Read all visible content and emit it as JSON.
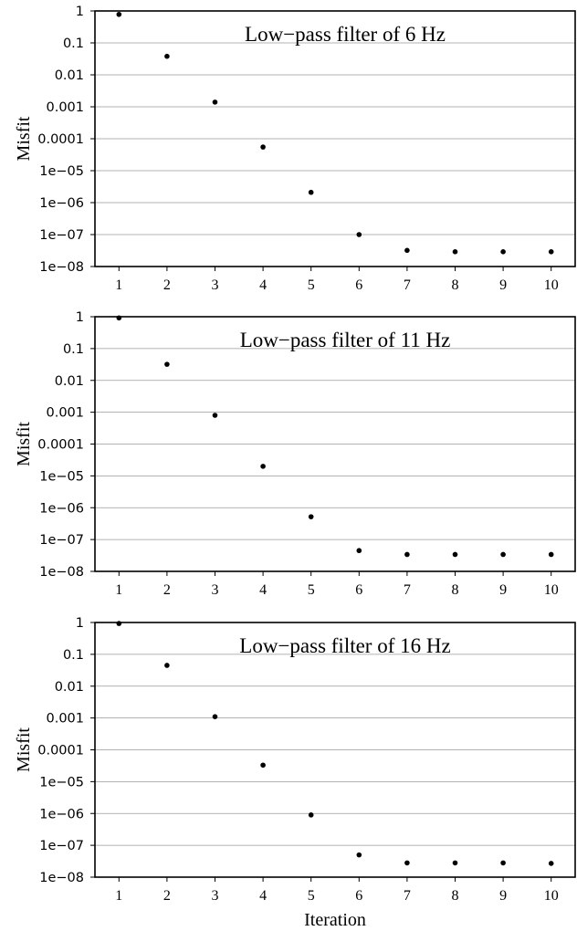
{
  "chart_data": [
    {
      "type": "scatter",
      "title": "Low−pass filter of 6 Hz",
      "ylabel": "Misfit",
      "xlabel": "",
      "y_scale": "log",
      "ylim": [
        1e-08,
        1
      ],
      "xlim": [
        0.5,
        10.5
      ],
      "x_ticks": [
        1,
        2,
        3,
        4,
        5,
        6,
        7,
        8,
        9,
        10
      ],
      "y_tick_labels": [
        "1",
        "0.1",
        "0.01",
        "0.001",
        "0.0001",
        "1e−05",
        "1e−06",
        "1e−07",
        "1e−08"
      ],
      "grid": "horizontal",
      "x": [
        1,
        2,
        3,
        4,
        5,
        6,
        7,
        8,
        9,
        10
      ],
      "y": [
        0.78,
        0.038,
        0.0014,
        5.5e-05,
        2.1e-06,
        1e-07,
        3.2e-08,
        2.9e-08,
        2.9e-08,
        2.9e-08
      ]
    },
    {
      "type": "scatter",
      "title": "Low−pass filter of 11 Hz",
      "ylabel": "Misfit",
      "xlabel": "",
      "y_scale": "log",
      "ylim": [
        1e-08,
        1
      ],
      "xlim": [
        0.5,
        10.5
      ],
      "x_ticks": [
        1,
        2,
        3,
        4,
        5,
        6,
        7,
        8,
        9,
        10
      ],
      "y_tick_labels": [
        "1",
        "0.1",
        "0.01",
        "0.001",
        "0.0001",
        "1e−05",
        "1e−06",
        "1e−07",
        "1e−08"
      ],
      "grid": "horizontal",
      "x": [
        1,
        2,
        3,
        4,
        5,
        6,
        7,
        8,
        9,
        10
      ],
      "y": [
        0.92,
        0.032,
        0.0008,
        2e-05,
        5.2e-07,
        4.5e-08,
        3.4e-08,
        3.4e-08,
        3.4e-08,
        3.4e-08
      ]
    },
    {
      "type": "scatter",
      "title": "Low−pass filter of 16 Hz",
      "ylabel": "Misfit",
      "xlabel": "Iteration",
      "y_scale": "log",
      "ylim": [
        1e-08,
        1
      ],
      "xlim": [
        0.5,
        10.5
      ],
      "x_ticks": [
        1,
        2,
        3,
        4,
        5,
        6,
        7,
        8,
        9,
        10
      ],
      "y_tick_labels": [
        "1",
        "0.1",
        "0.01",
        "0.001",
        "0.0001",
        "1e−05",
        "1e−06",
        "1e−07",
        "1e−08"
      ],
      "grid": "horizontal",
      "x": [
        1,
        2,
        3,
        4,
        5,
        6,
        7,
        8,
        9,
        10
      ],
      "y": [
        0.93,
        0.045,
        0.0011,
        3.3e-05,
        9e-07,
        5e-08,
        2.8e-08,
        2.8e-08,
        2.8e-08,
        2.7e-08
      ]
    }
  ]
}
